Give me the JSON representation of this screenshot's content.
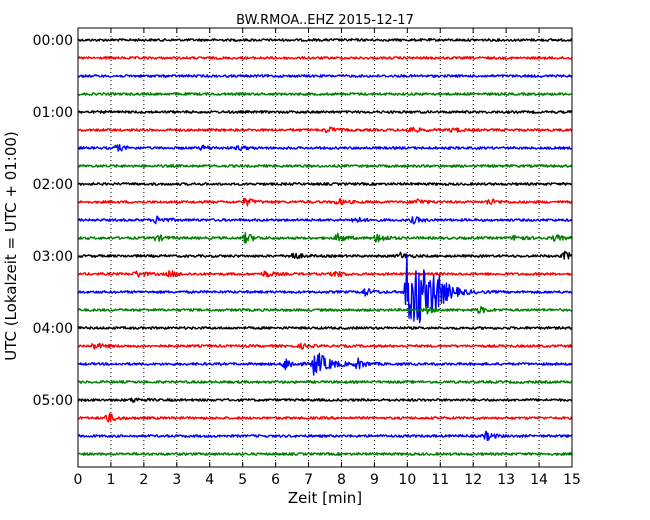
{
  "chart_data": {
    "type": "line",
    "title": "BW.RMOA..EHZ 2015-12-17",
    "xlabel": "Zeit  [min]",
    "ylabel": "UTC (Lokalzeit = UTC + 01:00)",
    "xlim": [
      0,
      15
    ],
    "xticks": [
      "0",
      "1",
      "2",
      "3",
      "4",
      "5",
      "6",
      "7",
      "8",
      "9",
      "10",
      "11",
      "12",
      "13",
      "14",
      "15"
    ],
    "yticks": [
      "00:00",
      "01:00",
      "02:00",
      "03:00",
      "04:00",
      "05:00"
    ],
    "grid": "vertical-dotted",
    "trace_interval_min": 15,
    "trace_colors": [
      "#000000",
      "#ff0000",
      "#0000ff",
      "#008000"
    ],
    "traces": [
      {
        "start": "00:00",
        "events": []
      },
      {
        "start": "00:15",
        "events": []
      },
      {
        "start": "00:30",
        "events": []
      },
      {
        "start": "00:45",
        "events": []
      },
      {
        "start": "01:00",
        "events": []
      },
      {
        "start": "01:15",
        "events": [
          [
            7.6,
            3
          ],
          [
            10.1,
            3
          ],
          [
            11.4,
            2
          ]
        ]
      },
      {
        "start": "01:30",
        "events": [
          [
            1.2,
            3
          ],
          [
            3.8,
            2
          ],
          [
            4.9,
            2
          ]
        ]
      },
      {
        "start": "01:45",
        "events": []
      },
      {
        "start": "02:00",
        "events": []
      },
      {
        "start": "02:15",
        "events": [
          [
            5.1,
            4
          ],
          [
            7.9,
            3
          ],
          [
            10.3,
            3
          ],
          [
            12.5,
            3
          ]
        ]
      },
      {
        "start": "02:30",
        "events": [
          [
            2.4,
            4
          ],
          [
            8.4,
            3
          ],
          [
            10.2,
            3
          ]
        ]
      },
      {
        "start": "02:45",
        "events": [
          [
            2.4,
            3
          ],
          [
            5.1,
            5
          ],
          [
            7.9,
            4
          ],
          [
            9.1,
            5
          ],
          [
            13.3,
            3
          ],
          [
            14.5,
            3
          ]
        ]
      },
      {
        "start": "03:00",
        "events": [
          [
            6.5,
            4
          ],
          [
            9.8,
            3
          ],
          [
            14.8,
            4
          ]
        ]
      },
      {
        "start": "03:15",
        "events": [
          [
            1.8,
            3
          ],
          [
            2.8,
            3
          ],
          [
            5.7,
            3
          ],
          [
            7.8,
            3
          ]
        ]
      },
      {
        "start": "03:30",
        "events": [
          [
            10.0,
            40
          ],
          [
            10.3,
            22
          ],
          [
            10.8,
            16
          ],
          [
            8.7,
            4
          ]
        ]
      },
      {
        "start": "03:45",
        "events": [
          [
            10.6,
            3
          ],
          [
            12.2,
            3
          ]
        ]
      },
      {
        "start": "04:00",
        "events": []
      },
      {
        "start": "04:15",
        "events": [
          [
            0.5,
            3
          ],
          [
            6.8,
            2
          ]
        ]
      },
      {
        "start": "04:30",
        "events": [
          [
            7.2,
            14
          ],
          [
            6.3,
            6
          ],
          [
            8.5,
            5
          ]
        ]
      },
      {
        "start": "04:45",
        "events": []
      },
      {
        "start": "05:00",
        "events": [
          [
            1.7,
            2
          ]
        ]
      },
      {
        "start": "05:15",
        "events": [
          [
            0.9,
            5
          ]
        ]
      },
      {
        "start": "05:30",
        "events": [
          [
            12.4,
            4
          ]
        ]
      },
      {
        "start": "05:45",
        "events": []
      }
    ]
  }
}
